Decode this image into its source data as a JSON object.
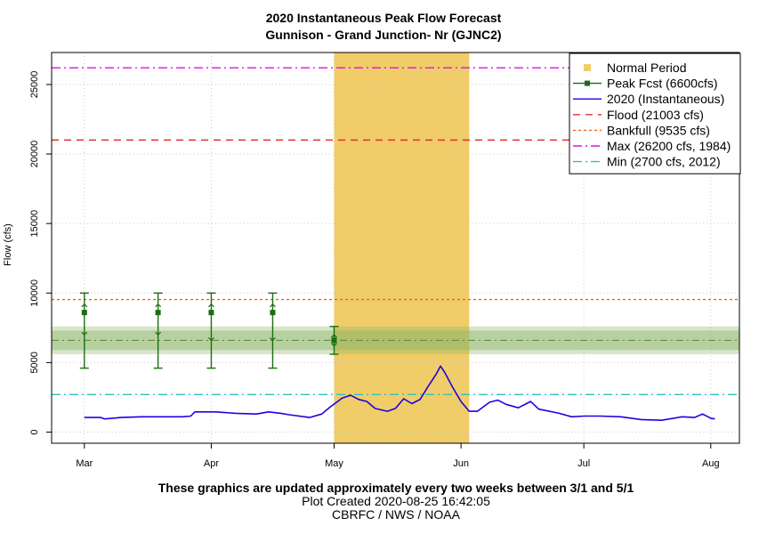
{
  "chart_data": {
    "type": "line",
    "title": "2020 Instantaneous Peak Flow Forecast",
    "subtitle": "Gunnison - Grand Junction- Nr (GJNC2)",
    "ylabel": "Flow (cfs)",
    "xlabel": "",
    "xlim": [
      "2020-02-22",
      "2020-08-08"
    ],
    "ylim": [
      -800,
      27300
    ],
    "x_ticks": [
      {
        "date": "2020-03-01",
        "label": "Mar"
      },
      {
        "date": "2020-04-01",
        "label": "Apr"
      },
      {
        "date": "2020-05-01",
        "label": "May"
      },
      {
        "date": "2020-06-01",
        "label": "Jun"
      },
      {
        "date": "2020-07-01",
        "label": "Jul"
      },
      {
        "date": "2020-08-01",
        "label": "Aug"
      }
    ],
    "y_ticks": [
      0,
      5000,
      10000,
      15000,
      20000,
      25000
    ],
    "grid": true,
    "normal_period": {
      "start": "2020-05-01",
      "end": "2020-06-03",
      "color": "#f0cd68"
    },
    "peak_forecast_band": {
      "value": 6600,
      "inner": [
        5900,
        7300
      ],
      "outer": [
        5600,
        7600
      ],
      "color": "#8db66b"
    },
    "forecasts": [
      {
        "date": "2020-03-01",
        "mid": 8600,
        "low": 4600,
        "high": 10000,
        "inner_low": 7000,
        "inner_high": 9200
      },
      {
        "date": "2020-03-19",
        "mid": 8600,
        "low": 4600,
        "high": 10000,
        "inner_low": 7000,
        "inner_high": 9200
      },
      {
        "date": "2020-04-01",
        "mid": 8600,
        "low": 4600,
        "high": 10000,
        "inner_low": 6600,
        "inner_high": 9200
      },
      {
        "date": "2020-04-16",
        "mid": 8600,
        "low": 4600,
        "high": 10000,
        "inner_low": 6600,
        "inner_high": 9200
      },
      {
        "date": "2020-05-01",
        "mid": 6600,
        "low": 5600,
        "high": 7600,
        "inner_low": 6200,
        "inner_high": 7000
      }
    ],
    "thresholds": [
      {
        "name": "Flood (21003 cfs)",
        "value": 21003,
        "color": "#e03030",
        "dash": "8,6"
      },
      {
        "name": "Bankfull (9535 cfs)",
        "value": 9535,
        "color": "#e86a10",
        "dash": "3,3"
      },
      {
        "name": "Max (26200 cfs, 1984)",
        "value": 26200,
        "color": "#e010e0",
        "dash": "10,4,2,4"
      },
      {
        "name": "Min (2700 cfs, 2012)",
        "value": 2700,
        "color": "#30c0c0",
        "dash": "10,4,2,4"
      }
    ],
    "series": [
      {
        "name": "2020  (Instantaneous)",
        "color": "#2200dd",
        "points": [
          [
            "2020-03-01",
            1050
          ],
          [
            "2020-03-05",
            1050
          ],
          [
            "2020-03-06",
            950
          ],
          [
            "2020-03-10",
            1050
          ],
          [
            "2020-03-15",
            1100
          ],
          [
            "2020-03-20",
            1100
          ],
          [
            "2020-03-25",
            1100
          ],
          [
            "2020-03-27",
            1150
          ],
          [
            "2020-03-28",
            1450
          ],
          [
            "2020-04-02",
            1450
          ],
          [
            "2020-04-07",
            1350
          ],
          [
            "2020-04-12",
            1300
          ],
          [
            "2020-04-15",
            1450
          ],
          [
            "2020-04-18",
            1350
          ],
          [
            "2020-04-20",
            1250
          ],
          [
            "2020-04-25",
            1050
          ],
          [
            "2020-04-28",
            1300
          ],
          [
            "2020-04-30",
            1800
          ],
          [
            "2020-05-03",
            2450
          ],
          [
            "2020-05-05",
            2650
          ],
          [
            "2020-05-07",
            2350
          ],
          [
            "2020-05-09",
            2200
          ],
          [
            "2020-05-11",
            1700
          ],
          [
            "2020-05-14",
            1500
          ],
          [
            "2020-05-16",
            1700
          ],
          [
            "2020-05-18",
            2400
          ],
          [
            "2020-05-20",
            2050
          ],
          [
            "2020-05-22",
            2350
          ],
          [
            "2020-05-24",
            3300
          ],
          [
            "2020-05-26",
            4200
          ],
          [
            "2020-05-27",
            4750
          ],
          [
            "2020-05-28",
            4300
          ],
          [
            "2020-05-30",
            3200
          ],
          [
            "2020-06-01",
            2200
          ],
          [
            "2020-06-03",
            1500
          ],
          [
            "2020-06-05",
            1500
          ],
          [
            "2020-06-08",
            2150
          ],
          [
            "2020-06-10",
            2300
          ],
          [
            "2020-06-12",
            2000
          ],
          [
            "2020-06-15",
            1750
          ],
          [
            "2020-06-17",
            2050
          ],
          [
            "2020-06-18",
            2200
          ],
          [
            "2020-06-20",
            1650
          ],
          [
            "2020-06-25",
            1350
          ],
          [
            "2020-06-28",
            1100
          ],
          [
            "2020-07-01",
            1150
          ],
          [
            "2020-07-05",
            1150
          ],
          [
            "2020-07-10",
            1100
          ],
          [
            "2020-07-15",
            900
          ],
          [
            "2020-07-20",
            850
          ],
          [
            "2020-07-25",
            1100
          ],
          [
            "2020-07-28",
            1050
          ],
          [
            "2020-07-30",
            1300
          ],
          [
            "2020-08-01",
            1000
          ],
          [
            "2020-08-02",
            950
          ]
        ]
      }
    ],
    "legend": {
      "placement": "top-right",
      "entries": [
        {
          "label": "Normal Period",
          "kind": "square",
          "color": "#f0cd68"
        },
        {
          "label": "Peak Fcst (6600cfs)",
          "kind": "marker-line",
          "color": "#1a6e10"
        },
        {
          "label": "2020  (Instantaneous)",
          "kind": "line",
          "color": "#2200dd"
        },
        {
          "label": "Flood (21003 cfs)",
          "kind": "line",
          "color": "#e03030",
          "dash": "8,6"
        },
        {
          "label": "Bankfull (9535 cfs)",
          "kind": "line",
          "color": "#e86a10",
          "dash": "3,3"
        },
        {
          "label": "Max (26200 cfs, 1984)",
          "kind": "line",
          "color": "#e010e0",
          "dash": "10,4,2,4"
        },
        {
          "label": "Min (2700 cfs, 2012)",
          "kind": "line",
          "color": "#30c0c0",
          "dash": "10,4,2,4"
        }
      ]
    },
    "footer": {
      "notice": "These graphics are updated approximately every two weeks between 3/1 and 5/1",
      "created": "Plot Created 2020-08-25 16:42:05",
      "credit": "CBRFC / NWS / NOAA"
    }
  }
}
